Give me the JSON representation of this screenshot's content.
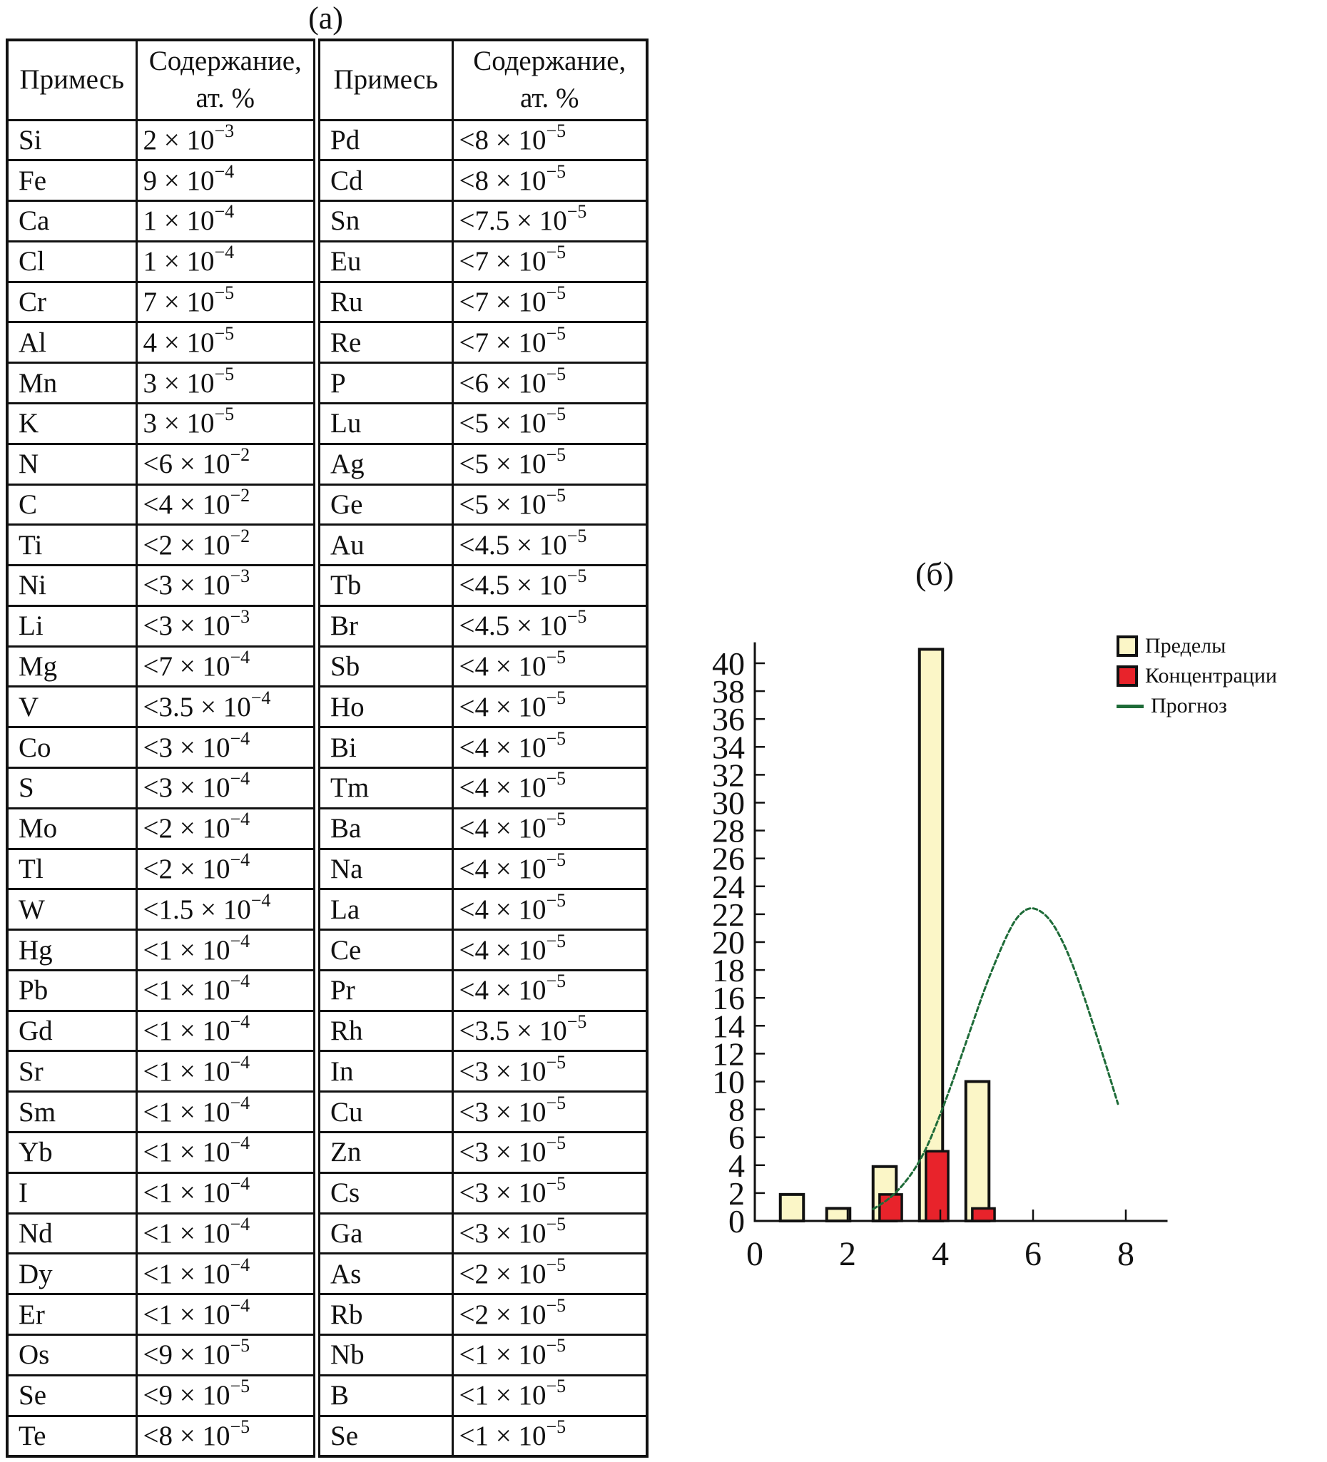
{
  "figure": {
    "panel_a_label": "(a)",
    "panel_b_label": "(б)"
  },
  "table": {
    "header": {
      "impurity": "Примесь",
      "content_line1": "Содержание,",
      "content_line2": "ат. %"
    },
    "rows": [
      {
        "l_el": "Si",
        "l_base": "2 × 10",
        "l_exp": "−3",
        "r_el": "Pd",
        "r_base": "<8 × 10",
        "r_exp": "−5"
      },
      {
        "l_el": "Fe",
        "l_base": "9 × 10",
        "l_exp": "−4",
        "r_el": "Cd",
        "r_base": "<8 × 10",
        "r_exp": "−5"
      },
      {
        "l_el": "Ca",
        "l_base": "1 × 10",
        "l_exp": "−4",
        "r_el": "Sn",
        "r_base": "<7.5 × 10",
        "r_exp": "−5"
      },
      {
        "l_el": "Cl",
        "l_base": "1 × 10",
        "l_exp": "−4",
        "r_el": "Eu",
        "r_base": "<7 × 10",
        "r_exp": "−5"
      },
      {
        "l_el": "Cr",
        "l_base": "7 × 10",
        "l_exp": "−5",
        "r_el": "Ru",
        "r_base": "<7 × 10",
        "r_exp": "−5"
      },
      {
        "l_el": "Al",
        "l_base": "4 × 10",
        "l_exp": "−5",
        "r_el": "Re",
        "r_base": "<7 × 10",
        "r_exp": "−5"
      },
      {
        "l_el": "Mn",
        "l_base": "3 × 10",
        "l_exp": "−5",
        "r_el": "P",
        "r_base": "<6 × 10",
        "r_exp": "−5"
      },
      {
        "l_el": "K",
        "l_base": "3 × 10",
        "l_exp": "−5",
        "r_el": "Lu",
        "r_base": "<5 × 10",
        "r_exp": "−5"
      },
      {
        "l_el": "N",
        "l_base": "<6 × 10",
        "l_exp": "−2",
        "r_el": "Ag",
        "r_base": "<5 × 10",
        "r_exp": "−5"
      },
      {
        "l_el": "C",
        "l_base": "<4 × 10",
        "l_exp": "−2",
        "r_el": "Ge",
        "r_base": "<5 × 10",
        "r_exp": "−5"
      },
      {
        "l_el": "Ti",
        "l_base": "<2 × 10",
        "l_exp": "−2",
        "r_el": "Au",
        "r_base": "<4.5 × 10",
        "r_exp": "−5"
      },
      {
        "l_el": "Ni",
        "l_base": "<3 × 10",
        "l_exp": "−3",
        "r_el": "Tb",
        "r_base": "<4.5 × 10",
        "r_exp": "−5"
      },
      {
        "l_el": "Li",
        "l_base": "<3 × 10",
        "l_exp": "−3",
        "r_el": "Br",
        "r_base": "<4.5 × 10",
        "r_exp": "−5"
      },
      {
        "l_el": "Mg",
        "l_base": "<7 × 10",
        "l_exp": "−4",
        "r_el": "Sb",
        "r_base": "<4 × 10",
        "r_exp": "−5"
      },
      {
        "l_el": "V",
        "l_base": "<3.5 × 10",
        "l_exp": "−4",
        "r_el": "Ho",
        "r_base": "<4 × 10",
        "r_exp": "−5"
      },
      {
        "l_el": "Co",
        "l_base": "<3 × 10",
        "l_exp": "−4",
        "r_el": "Bi",
        "r_base": "<4 × 10",
        "r_exp": "−5"
      },
      {
        "l_el": "S",
        "l_base": "<3 × 10",
        "l_exp": "−4",
        "r_el": "Tm",
        "r_base": "<4 × 10",
        "r_exp": "−5"
      },
      {
        "l_el": "Mo",
        "l_base": "<2 × 10",
        "l_exp": "−4",
        "r_el": "Ba",
        "r_base": "<4 × 10",
        "r_exp": "−5"
      },
      {
        "l_el": "Tl",
        "l_base": "<2 × 10",
        "l_exp": "−4",
        "r_el": "Na",
        "r_base": "<4 × 10",
        "r_exp": "−5"
      },
      {
        "l_el": "W",
        "l_base": "<1.5 × 10",
        "l_exp": "−4",
        "r_el": "La",
        "r_base": "<4 × 10",
        "r_exp": "−5"
      },
      {
        "l_el": "Hg",
        "l_base": "<1 × 10",
        "l_exp": "−4",
        "r_el": "Ce",
        "r_base": "<4 × 10",
        "r_exp": "−5"
      },
      {
        "l_el": "Pb",
        "l_base": "<1 × 10",
        "l_exp": "−4",
        "r_el": "Pr",
        "r_base": "<4 × 10",
        "r_exp": "−5"
      },
      {
        "l_el": "Gd",
        "l_base": "<1 × 10",
        "l_exp": "−4",
        "r_el": "Rh",
        "r_base": "<3.5 × 10",
        "r_exp": "−5"
      },
      {
        "l_el": "Sr",
        "l_base": "<1 × 10",
        "l_exp": "−4",
        "r_el": "In",
        "r_base": "<3 × 10",
        "r_exp": "−5"
      },
      {
        "l_el": "Sm",
        "l_base": "<1 × 10",
        "l_exp": "−4",
        "r_el": "Cu",
        "r_base": "<3 × 10",
        "r_exp": "−5"
      },
      {
        "l_el": "Yb",
        "l_base": "<1 × 10",
        "l_exp": "−4",
        "r_el": "Zn",
        "r_base": "<3 × 10",
        "r_exp": "−5"
      },
      {
        "l_el": "I",
        "l_base": "<1 × 10",
        "l_exp": "−4",
        "r_el": "Cs",
        "r_base": "<3 × 10",
        "r_exp": "−5"
      },
      {
        "l_el": "Nd",
        "l_base": "<1 × 10",
        "l_exp": "−4",
        "r_el": "Ga",
        "r_base": "<3 × 10",
        "r_exp": "−5"
      },
      {
        "l_el": "Dy",
        "l_base": "<1 × 10",
        "l_exp": "−4",
        "r_el": "As",
        "r_base": "<2 × 10",
        "r_exp": "−5"
      },
      {
        "l_el": "Er",
        "l_base": "<1 × 10",
        "l_exp": "−4",
        "r_el": "Rb",
        "r_base": "<2 × 10",
        "r_exp": "−5"
      },
      {
        "l_el": "Os",
        "l_base": "<9 × 10",
        "l_exp": "−5",
        "r_el": "Nb",
        "r_base": "<1 × 10",
        "r_exp": "−5"
      },
      {
        "l_el": "Se",
        "l_base": "<9 × 10",
        "l_exp": "−5",
        "r_el": "B",
        "r_base": "<1 × 10",
        "r_exp": "−5"
      },
      {
        "l_el": "Te",
        "l_base": "<8 × 10",
        "l_exp": "−5",
        "r_el": "Se",
        "r_base": "<1 × 10",
        "r_exp": "−5"
      }
    ]
  },
  "chart_data": {
    "type": "bar",
    "title": "(б)",
    "xlabel": "",
    "ylabel": "",
    "xlim": [
      0,
      8.9
    ],
    "ylim": [
      0,
      41.5
    ],
    "x_ticks": [
      0,
      2,
      4,
      6,
      8
    ],
    "y_ticks": [
      0,
      2,
      4,
      6,
      8,
      10,
      12,
      14,
      16,
      18,
      20,
      22,
      24,
      26,
      28,
      30,
      32,
      34,
      36,
      38,
      40
    ],
    "grid": false,
    "legend_position": "top-right",
    "axis_color": "#111111",
    "series": [
      {
        "name": "Пределы",
        "type": "bar",
        "color": "#fbf6c7",
        "border": "#111111",
        "border_width": 4,
        "x": [
          1,
          2,
          3,
          4,
          5
        ],
        "values": [
          1.9,
          0.9,
          3.9,
          41,
          10
        ],
        "bar_center_offset": -0.2,
        "bar_width": 0.5
      },
      {
        "name": "Концентрации",
        "type": "bar",
        "color": "#e8232b",
        "border": "#111111",
        "border_width": 3.5,
        "x": [
          3,
          4,
          5
        ],
        "values": [
          1.9,
          5,
          0.9
        ],
        "bar_center_offset": -0.07,
        "bar_width": 0.48
      },
      {
        "name": "Прогноз",
        "type": "line",
        "color": "#1e6b38",
        "dashed": true,
        "points": [
          [
            2.55,
            0.85
          ],
          [
            2.8,
            1.35
          ],
          [
            3.0,
            1.9
          ],
          [
            3.2,
            2.6
          ],
          [
            3.45,
            3.7
          ],
          [
            3.7,
            5.2
          ],
          [
            3.95,
            7.2
          ],
          [
            4.2,
            9.4
          ],
          [
            4.45,
            11.8
          ],
          [
            4.7,
            14.2
          ],
          [
            4.95,
            16.6
          ],
          [
            5.2,
            18.7
          ],
          [
            5.45,
            20.6
          ],
          [
            5.65,
            21.8
          ],
          [
            5.9,
            22.5
          ],
          [
            6.15,
            22.3
          ],
          [
            6.4,
            21.5
          ],
          [
            6.65,
            20.0
          ],
          [
            6.9,
            18.0
          ],
          [
            7.15,
            15.6
          ],
          [
            7.4,
            13.0
          ],
          [
            7.6,
            10.9
          ],
          [
            7.83,
            8.4
          ]
        ]
      }
    ]
  }
}
